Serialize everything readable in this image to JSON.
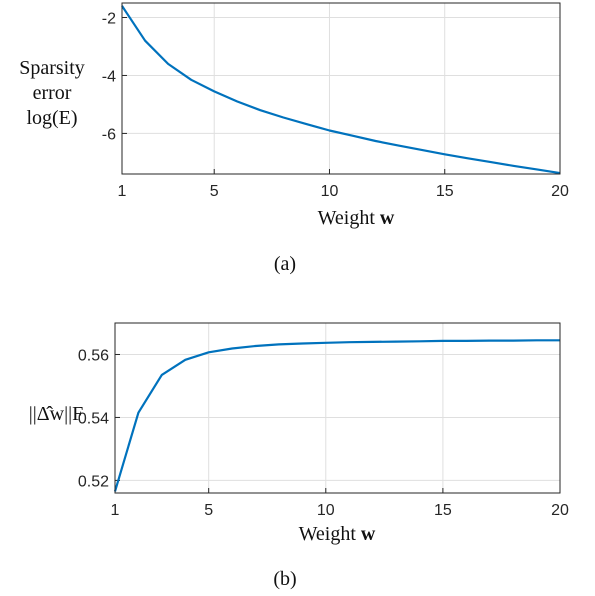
{
  "colors": {
    "series": "#0072bd",
    "axis": "#262626",
    "grid": "#dfdfdf"
  },
  "chart_data": [
    {
      "type": "line",
      "caption": "(a)",
      "xlabel_text": "Weight",
      "xlabel_bold": "w",
      "ylabel_lines": [
        "Sparsity",
        "error",
        "log(E)"
      ],
      "xlim": [
        1,
        20
      ],
      "ylim": [
        -7.4,
        -1.5
      ],
      "xticks": [
        1,
        5,
        10,
        15,
        20
      ],
      "yticks": [
        -2,
        -4,
        -6
      ],
      "ytick_labels": [
        "-2",
        "-4",
        "-6"
      ],
      "grid": true,
      "series": [
        {
          "x": [
            1,
            2,
            3,
            4,
            5,
            6,
            7,
            8,
            9,
            10,
            11,
            12,
            13,
            14,
            15,
            16,
            17,
            18,
            19,
            20
          ],
          "values": [
            -1.6,
            -2.8,
            -3.6,
            -4.15,
            -4.55,
            -4.9,
            -5.2,
            -5.45,
            -5.68,
            -5.9,
            -6.08,
            -6.26,
            -6.42,
            -6.57,
            -6.72,
            -6.86,
            -6.99,
            -7.12,
            -7.24,
            -7.37
          ]
        }
      ]
    },
    {
      "type": "line",
      "caption": "(b)",
      "xlabel_text": "Weight",
      "xlabel_bold": "w",
      "ylabel_math": "||Δ̂w||F",
      "xlim": [
        1,
        20
      ],
      "ylim": [
        0.516,
        0.57
      ],
      "xticks": [
        1,
        5,
        10,
        15,
        20
      ],
      "yticks": [
        0.52,
        0.54,
        0.56
      ],
      "ytick_labels": [
        "0.52",
        "0.54",
        "0.56"
      ],
      "grid": true,
      "series": [
        {
          "x": [
            1,
            2,
            3,
            4,
            5,
            6,
            7,
            8,
            9,
            10,
            11,
            12,
            13,
            14,
            15,
            16,
            17,
            18,
            19,
            20
          ],
          "values": [
            0.5165,
            0.5415,
            0.5535,
            0.5583,
            0.5607,
            0.5619,
            0.5627,
            0.5632,
            0.5635,
            0.5637,
            0.5639,
            0.564,
            0.5641,
            0.5642,
            0.5643,
            0.5643,
            0.5644,
            0.5644,
            0.5645,
            0.5645
          ]
        }
      ]
    }
  ]
}
